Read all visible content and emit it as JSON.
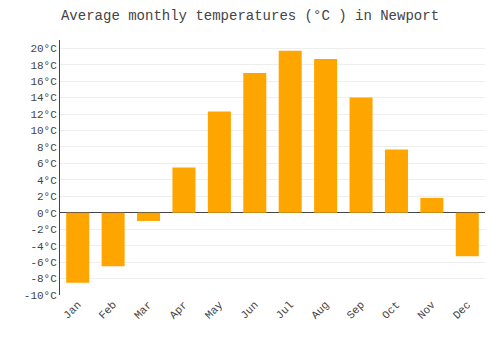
{
  "chart_data": {
    "type": "bar",
    "title": "Average monthly temperatures (°C ) in Newport",
    "categories": [
      "Jan",
      "Feb",
      "Mar",
      "Apr",
      "May",
      "Jun",
      "Jul",
      "Aug",
      "Sep",
      "Oct",
      "Nov",
      "Dec"
    ],
    "values": [
      -8.5,
      -6.5,
      -1.0,
      5.5,
      12.3,
      17.0,
      19.7,
      18.7,
      14.0,
      7.7,
      1.8,
      -5.3
    ],
    "color": "#FFA500",
    "ylim": [
      -10,
      21
    ],
    "yticks": [
      {
        "value": -10,
        "label": "-10°C"
      },
      {
        "value": -8,
        "label": "-8°C"
      },
      {
        "value": -6,
        "label": "-6°C"
      },
      {
        "value": -4,
        "label": "-4°C"
      },
      {
        "value": -2,
        "label": "-2°C"
      },
      {
        "value": 0,
        "label": "0°C"
      },
      {
        "value": 2,
        "label": "2°C"
      },
      {
        "value": 4,
        "label": "4°C"
      },
      {
        "value": 6,
        "label": "6°C"
      },
      {
        "value": 8,
        "label": "8°C"
      },
      {
        "value": 10,
        "label": "10°C"
      },
      {
        "value": 12,
        "label": "12°C"
      },
      {
        "value": 14,
        "label": "14°C"
      },
      {
        "value": 16,
        "label": "16°C"
      },
      {
        "value": 18,
        "label": "18°C"
      },
      {
        "value": 20,
        "label": "20°C"
      }
    ],
    "grid": true
  }
}
